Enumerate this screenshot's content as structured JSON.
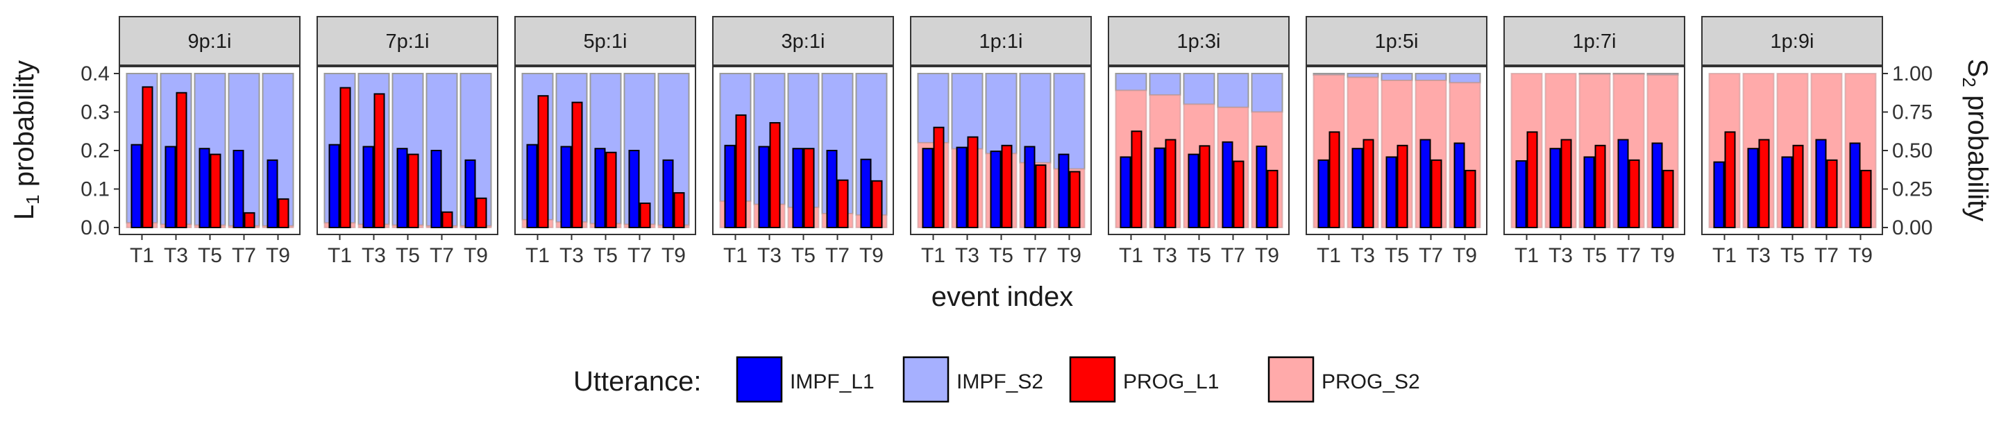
{
  "chart_data": {
    "type": "bar",
    "facets": [
      "9p:1i",
      "7p:1i",
      "5p:1i",
      "3p:1i",
      "1p:1i",
      "1p:3i",
      "1p:5i",
      "1p:7i",
      "1p:9i"
    ],
    "categories": [
      "T1",
      "T3",
      "T5",
      "T7",
      "T9"
    ],
    "xlabel": "event index",
    "ylabel_left": {
      "main": "L",
      "sub": "1",
      "rest": " probability"
    },
    "ylabel_right": {
      "main": "S",
      "sub": "2",
      "rest": " probability"
    },
    "y_left": {
      "lim": [
        0,
        0.4
      ],
      "ticks": [
        "0.0",
        "0.1",
        "0.2",
        "0.3",
        "0.4"
      ],
      "values": [
        0,
        0.1,
        0.2,
        0.3,
        0.4
      ]
    },
    "y_right": {
      "lim": [
        0,
        1
      ],
      "ticks": [
        "0.00",
        "0.25",
        "0.50",
        "0.75",
        "1.00"
      ],
      "values": [
        0,
        0.25,
        0.5,
        0.75,
        1
      ]
    },
    "grid": false,
    "legend": {
      "title": "Utterance:",
      "position": "bottom",
      "items": [
        {
          "name": "IMPF_L1",
          "color": "#0000ff"
        },
        {
          "name": "IMPF_S2",
          "color": "#a6b0ff"
        },
        {
          "name": "PROG_L1",
          "color": "#ff0000"
        },
        {
          "name": "PROG_S2",
          "color": "#ffaaaa"
        }
      ]
    },
    "colors": {
      "IMPF_L1": "#0000ff",
      "IMPF_S2": "#a6b0ff",
      "PROG_L1": "#ff0000",
      "PROG_S2": "#ffaaaa",
      "strip_background": "#d3d3d3",
      "panel_border": "#333333"
    },
    "series": [
      {
        "name": "IMPF_L1",
        "axis": "left",
        "values": [
          [
            0.215,
            0.21,
            0.205,
            0.2,
            0.175
          ],
          [
            0.215,
            0.21,
            0.205,
            0.2,
            0.175
          ],
          [
            0.215,
            0.21,
            0.205,
            0.2,
            0.175
          ],
          [
            0.213,
            0.21,
            0.205,
            0.2,
            0.177
          ],
          [
            0.205,
            0.208,
            0.198,
            0.21,
            0.19
          ],
          [
            0.183,
            0.206,
            0.19,
            0.222,
            0.211
          ],
          [
            0.175,
            0.205,
            0.183,
            0.228,
            0.219
          ],
          [
            0.173,
            0.205,
            0.183,
            0.228,
            0.219
          ],
          [
            0.17,
            0.205,
            0.183,
            0.228,
            0.219
          ]
        ]
      },
      {
        "name": "PROG_L1",
        "axis": "left",
        "values": [
          [
            0.365,
            0.35,
            0.19,
            0.038,
            0.074
          ],
          [
            0.363,
            0.347,
            0.19,
            0.04,
            0.076
          ],
          [
            0.342,
            0.325,
            0.195,
            0.063,
            0.09
          ],
          [
            0.292,
            0.272,
            0.205,
            0.123,
            0.121
          ],
          [
            0.26,
            0.235,
            0.213,
            0.162,
            0.145
          ],
          [
            0.25,
            0.228,
            0.212,
            0.172,
            0.148
          ],
          [
            0.248,
            0.228,
            0.213,
            0.175,
            0.148
          ],
          [
            0.248,
            0.228,
            0.213,
            0.175,
            0.148
          ],
          [
            0.248,
            0.228,
            0.213,
            0.175,
            0.148
          ]
        ]
      },
      {
        "name": "PROG_S2",
        "axis": "right",
        "values": [
          [
            0.03,
            0.02,
            0.015,
            0.01,
            0.01
          ],
          [
            0.03,
            0.02,
            0.015,
            0.01,
            0.01
          ],
          [
            0.05,
            0.035,
            0.025,
            0.02,
            0.015
          ],
          [
            0.17,
            0.15,
            0.13,
            0.09,
            0.08
          ],
          [
            0.55,
            0.51,
            0.48,
            0.42,
            0.38
          ],
          [
            0.89,
            0.86,
            0.8,
            0.78,
            0.75
          ],
          [
            0.99,
            0.975,
            0.955,
            0.955,
            0.94
          ],
          [
            1.0,
            1.0,
            0.995,
            0.995,
            0.99
          ],
          [
            1.0,
            1.0,
            1.0,
            1.0,
            1.0
          ]
        ]
      }
    ]
  }
}
